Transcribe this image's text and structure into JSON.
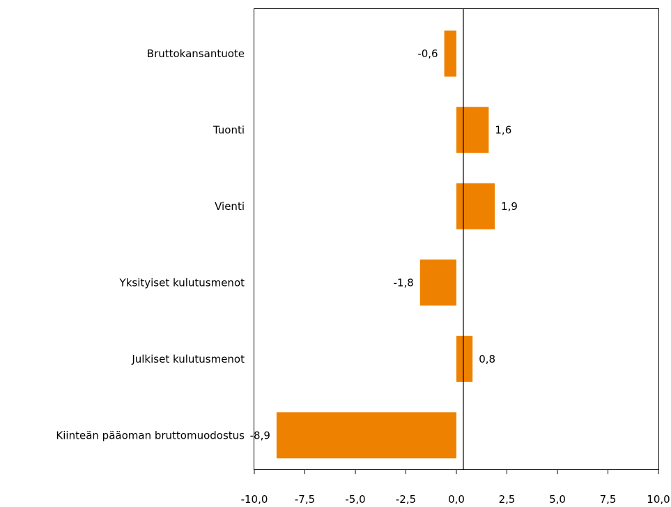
{
  "chart_data": {
    "type": "bar",
    "orientation": "horizontal",
    "categories": [
      "Bruttokansantuote",
      "Tuonti",
      "Vienti",
      "Yksityiset kulutusmenot",
      "Julkiset kulutusmenot",
      "Kiinteän pääoman bruttomuodostus"
    ],
    "values": [
      -0.6,
      1.6,
      1.9,
      -1.8,
      0.8,
      -8.9
    ],
    "value_labels": [
      "-0,6",
      "1,6",
      "1,9",
      "-1,8",
      "0,8",
      "-8,9"
    ],
    "xlim": [
      -10.0,
      10.0
    ],
    "xticks": [
      -10.0,
      -7.5,
      -5.0,
      -2.5,
      0.0,
      2.5,
      5.0,
      7.5,
      10.0
    ],
    "xtick_labels": [
      "-10,0",
      "-7,5",
      "-5,0",
      "-2,5",
      "0,0",
      "2,5",
      "5,0",
      "7,5",
      "10,0"
    ],
    "grid": false,
    "legend": "none",
    "bar_color": "#ee8100",
    "zero_line_color": "#000000",
    "frame_color": "#000000"
  }
}
